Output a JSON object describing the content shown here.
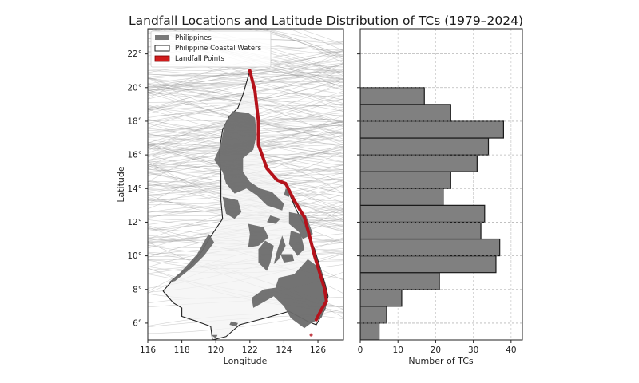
{
  "title": "Landfall Locations and Latitude Distribution of TCs (1979–2024)",
  "colors": {
    "land": "#6b6b6b",
    "coastal_waters_fill": "#f3f3f3",
    "coastal_waters_edge": "#222222",
    "landfall": "#b5121b",
    "tracks": "#9a9a9a",
    "bars": "#808080",
    "bar_edge": "#1a1a1a",
    "grid": "#cccccc"
  },
  "map": {
    "xlabel": "Longitude",
    "ylabel": "Latitude",
    "xticks": [
      "116",
      "118",
      "120",
      "122",
      "124",
      "126"
    ],
    "yticks": [
      "6°",
      "8°",
      "10°",
      "12°",
      "14°",
      "16°",
      "18°",
      "20°",
      "22°"
    ],
    "legend": [
      {
        "label": "Philippines",
        "swatch": "land"
      },
      {
        "label": "Philippine Coastal Waters",
        "swatch": "coastal"
      },
      {
        "label": "Landfall Points",
        "swatch": "landfall"
      }
    ]
  },
  "histogram": {
    "xlabel": "Number of TCs",
    "xticks": [
      "0",
      "10",
      "20",
      "30",
      "40"
    ]
  },
  "chart_data": [
    {
      "type": "scatter",
      "title": "Landfall Locations and Latitude Distribution of TCs (1979–2024)",
      "xlabel": "Longitude",
      "ylabel": "Latitude",
      "xlim": [
        116,
        127.5
      ],
      "ylim": [
        5,
        23.5
      ],
      "xticks": [
        116,
        118,
        120,
        122,
        124,
        126
      ],
      "yticks": [
        6,
        8,
        10,
        12,
        14,
        16,
        18,
        20,
        22
      ],
      "legend": [
        "Philippines",
        "Philippine Coastal Waters",
        "Landfall Points"
      ],
      "legend_position": "upper left",
      "grid": false,
      "landfall_path_lonlat": [
        [
          122.0,
          21.0
        ],
        [
          122.3,
          19.8
        ],
        [
          122.5,
          18.0
        ],
        [
          122.5,
          16.6
        ],
        [
          123.0,
          15.2
        ],
        [
          123.6,
          14.5
        ],
        [
          124.1,
          14.3
        ],
        [
          124.6,
          13.3
        ],
        [
          125.2,
          12.3
        ],
        [
          125.5,
          11.2
        ],
        [
          125.8,
          10.0
        ],
        [
          126.1,
          9.0
        ],
        [
          126.4,
          8.0
        ],
        [
          126.5,
          7.3
        ],
        [
          126.2,
          6.8
        ],
        [
          125.9,
          6.2
        ],
        [
          125.6,
          5.3
        ]
      ]
    },
    {
      "type": "bar",
      "orientation": "horizontal",
      "xlabel": "Number of TCs",
      "ylabel": "Latitude",
      "xlim": [
        0,
        43
      ],
      "xticks": [
        0,
        10,
        20,
        30,
        40
      ],
      "grid": true,
      "bin_edges": [
        5,
        6,
        7,
        8,
        9,
        10,
        11,
        12,
        13,
        14,
        15,
        16,
        17,
        18,
        19,
        20,
        21
      ],
      "categories": [
        "5-6",
        "6-7",
        "7-8",
        "8-9",
        "9-10",
        "10-11",
        "11-12",
        "12-13",
        "13-14",
        "14-15",
        "15-16",
        "16-17",
        "17-18",
        "18-19",
        "19-20",
        "20-21"
      ],
      "values": [
        5,
        7,
        11,
        21,
        36,
        37,
        32,
        33,
        22,
        24,
        31,
        34,
        38,
        24,
        17,
        0
      ]
    }
  ]
}
